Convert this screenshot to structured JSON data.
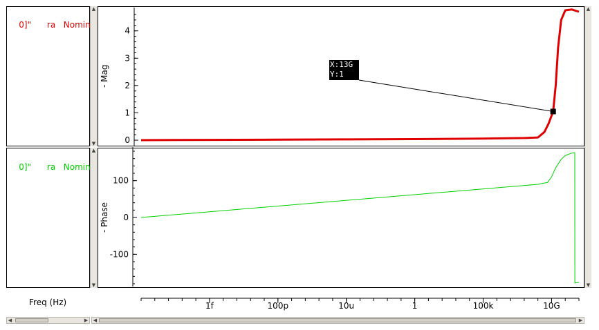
{
  "legends": {
    "mag": {
      "id": "0]\"",
      "name": "ra",
      "corner": "Nominal",
      "color": "#e00000"
    },
    "phase": {
      "id": "0]\"",
      "name": "ra",
      "corner": "Nominal",
      "color": "#00d000"
    }
  },
  "x_axis_label": "Freq (Hz)",
  "marker": {
    "line1": "X:13G",
    "line2": "Y:1"
  },
  "chart_data": [
    {
      "type": "line",
      "name": "magnitude",
      "ylabel": "- Mag",
      "x_scale": "log",
      "x_tick_labels": [
        "1f",
        "100p",
        "10u",
        "1",
        "100k",
        "10G"
      ],
      "x_tick_values": [
        1e-15,
        1e-10,
        1e-05,
        1,
        100000.0,
        10000000000.0
      ],
      "xlim": [
        1e-20,
        1000000000000.0
      ],
      "y_ticks": [
        0,
        1,
        2,
        3,
        4
      ],
      "ylim": [
        -0.1,
        4.7
      ],
      "series": [
        {
          "color": "#e00000",
          "x": [
            1e-20,
            1e-15,
            1e-10,
            1e-05,
            1,
            100000.0,
            100000000.0,
            1000000000.0,
            3000000000.0,
            6000000000.0,
            13000000000.0,
            20000000000.0,
            30000000000.0,
            50000000000.0,
            100000000000.0,
            300000000000.0,
            1000000000000.0
          ],
          "y": [
            0,
            0.01,
            0.02,
            0.03,
            0.04,
            0.06,
            0.08,
            0.1,
            0.3,
            0.6,
            1.05,
            2.0,
            3.4,
            4.4,
            4.75,
            4.78,
            4.7
          ]
        }
      ],
      "marker_point": {
        "x": 13000000000.0,
        "y": 1.05
      }
    },
    {
      "type": "line",
      "name": "phase",
      "ylabel": "- Phase",
      "x_scale": "log",
      "xlim": [
        1e-20,
        1000000000000.0
      ],
      "y_ticks": [
        -100,
        0,
        100
      ],
      "ylim": [
        -180,
        180
      ],
      "series": [
        {
          "color": "#00d000",
          "x": [
            1e-20,
            1000000000.0,
            5000000000.0,
            10000000000.0,
            20000000000.0,
            50000000000.0,
            100000000000.0,
            300000000000.0,
            500000000000.0,
            501000000000.0,
            1000000000000.0
          ],
          "y": [
            0,
            90,
            95,
            110,
            135,
            158,
            168,
            175,
            176,
            -178,
            -176
          ]
        }
      ]
    }
  ]
}
